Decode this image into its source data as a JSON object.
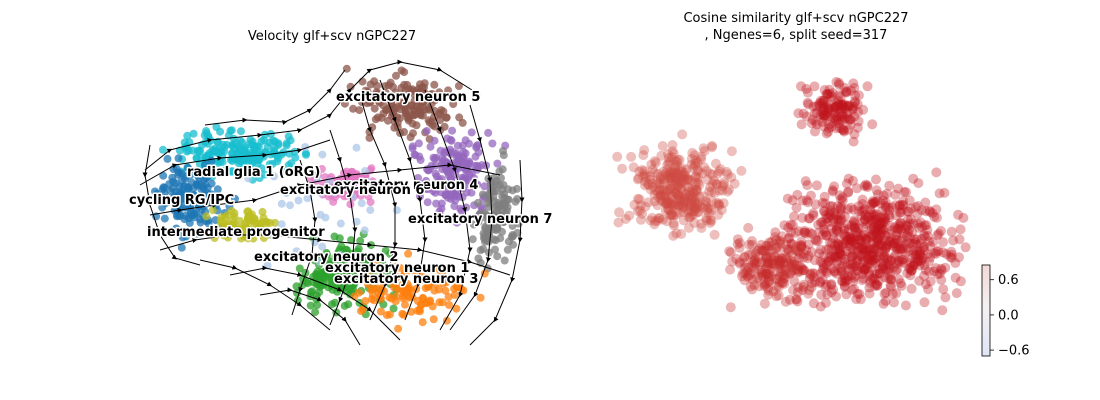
{
  "chart_data": [
    {
      "type": "scatter",
      "title": "Velocity glf+scv nGPC227",
      "subtitle": "",
      "xlabel": "",
      "ylabel": "",
      "grid": false,
      "axes_visible": false,
      "overlay": "velocity streamlines with arrowheads",
      "clusters": [
        {
          "name": "excitatory neuron 5",
          "color": "#8c564b"
        },
        {
          "name": "radial glia 1 (oRG)",
          "color": "#17becf"
        },
        {
          "name": "excitatory neuron 4",
          "color": "#9467bd"
        },
        {
          "name": "excitatory neuron 6",
          "color": "#e377c2"
        },
        {
          "name": "cycling RG/IPC",
          "color": "#1f77b4"
        },
        {
          "name": "excitatory neuron 7",
          "color": "#7f7f7f"
        },
        {
          "name": "intermediate progenitor",
          "color": "#bcbd22"
        },
        {
          "name": "excitatory neuron 2",
          "color": "#2ca02c"
        },
        {
          "name": "excitatory neuron 1",
          "color": "#ff7f0e"
        },
        {
          "name": "excitatory neuron 3",
          "color": "#aec7e8"
        }
      ]
    },
    {
      "type": "scatter",
      "title": "Cosine similarity glf+scv nGPC227",
      "subtitle": ", Ngenes=6, split seed=317",
      "xlabel": "",
      "ylabel": "",
      "grid": false,
      "axes_visible": false,
      "point_color": "#c0141e",
      "colorbar": {
        "ticks": [
          0.6,
          0.0,
          -0.6
        ],
        "tick_labels": [
          "0.6",
          "0.0",
          "−0.6"
        ],
        "range": [
          -0.7,
          0.85
        ],
        "colormap": "coolwarm"
      }
    }
  ]
}
